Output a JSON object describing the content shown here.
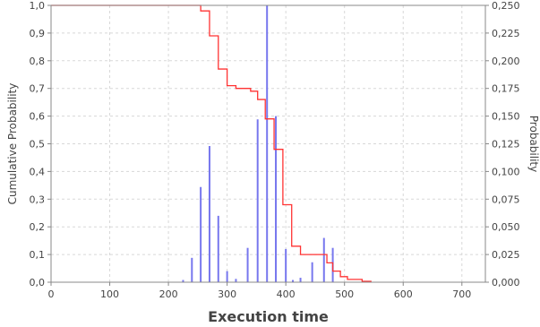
{
  "chart_data": {
    "type": "line",
    "title": "",
    "xlabel": "Execution time",
    "ylabel_left": "Cumulative Probability",
    "ylabel_right": "Probability",
    "xlim": [
      0,
      740
    ],
    "ylim_left": [
      0,
      1.0
    ],
    "ylim_right": [
      0,
      0.25
    ],
    "x_ticks": [
      "0",
      "100",
      "200",
      "300",
      "400",
      "500",
      "600",
      "700"
    ],
    "x_tick_values": [
      0,
      100,
      200,
      300,
      400,
      500,
      600,
      700
    ],
    "y_left_ticks": [
      "0,0",
      "0,1",
      "0,2",
      "0,3",
      "0,4",
      "0,5",
      "0,6",
      "0,7",
      "0,8",
      "0,9",
      "1,0"
    ],
    "y_left_tick_values": [
      0,
      0.1,
      0.2,
      0.3,
      0.4,
      0.5,
      0.6,
      0.7,
      0.8,
      0.9,
      1.0
    ],
    "y_right_ticks": [
      "0,000",
      "0,025",
      "0,050",
      "0,075",
      "0,100",
      "0,125",
      "0,150",
      "0,175",
      "0,200",
      "0,225",
      "0,250"
    ],
    "y_right_tick_values": [
      0,
      0.025,
      0.05,
      0.075,
      0.1,
      0.125,
      0.15,
      0.175,
      0.2,
      0.225,
      0.25
    ],
    "grid": true,
    "colors": {
      "cumulative": "#ff3333",
      "probability": "#7777ee",
      "grid": "#d8d8d8",
      "axis": "#888888"
    },
    "series": [
      {
        "axis": "left",
        "kind": "step",
        "x": [
          0,
          255,
          270,
          285,
          300,
          315,
          340,
          352,
          365,
          380,
          395,
          410,
          425,
          455,
          470,
          480,
          493,
          505,
          515,
          530,
          545
        ],
        "y": [
          1.0,
          0.98,
          0.89,
          0.77,
          0.71,
          0.7,
          0.69,
          0.66,
          0.59,
          0.48,
          0.28,
          0.13,
          0.1,
          0.1,
          0.07,
          0.04,
          0.02,
          0.01,
          0.01,
          0.003,
          0.0
        ]
      },
      {
        "axis": "right",
        "kind": "impulse",
        "x": [
          225,
          240,
          255,
          270,
          285,
          300,
          315,
          335,
          352,
          368,
          383,
          400,
          412,
          425,
          445,
          465,
          480
        ],
        "y": [
          0.002,
          0.022,
          0.086,
          0.123,
          0.06,
          0.01,
          0.003,
          0.031,
          0.147,
          0.25,
          0.15,
          0.03,
          0.002,
          0.004,
          0.018,
          0.04,
          0.031
        ]
      }
    ]
  }
}
